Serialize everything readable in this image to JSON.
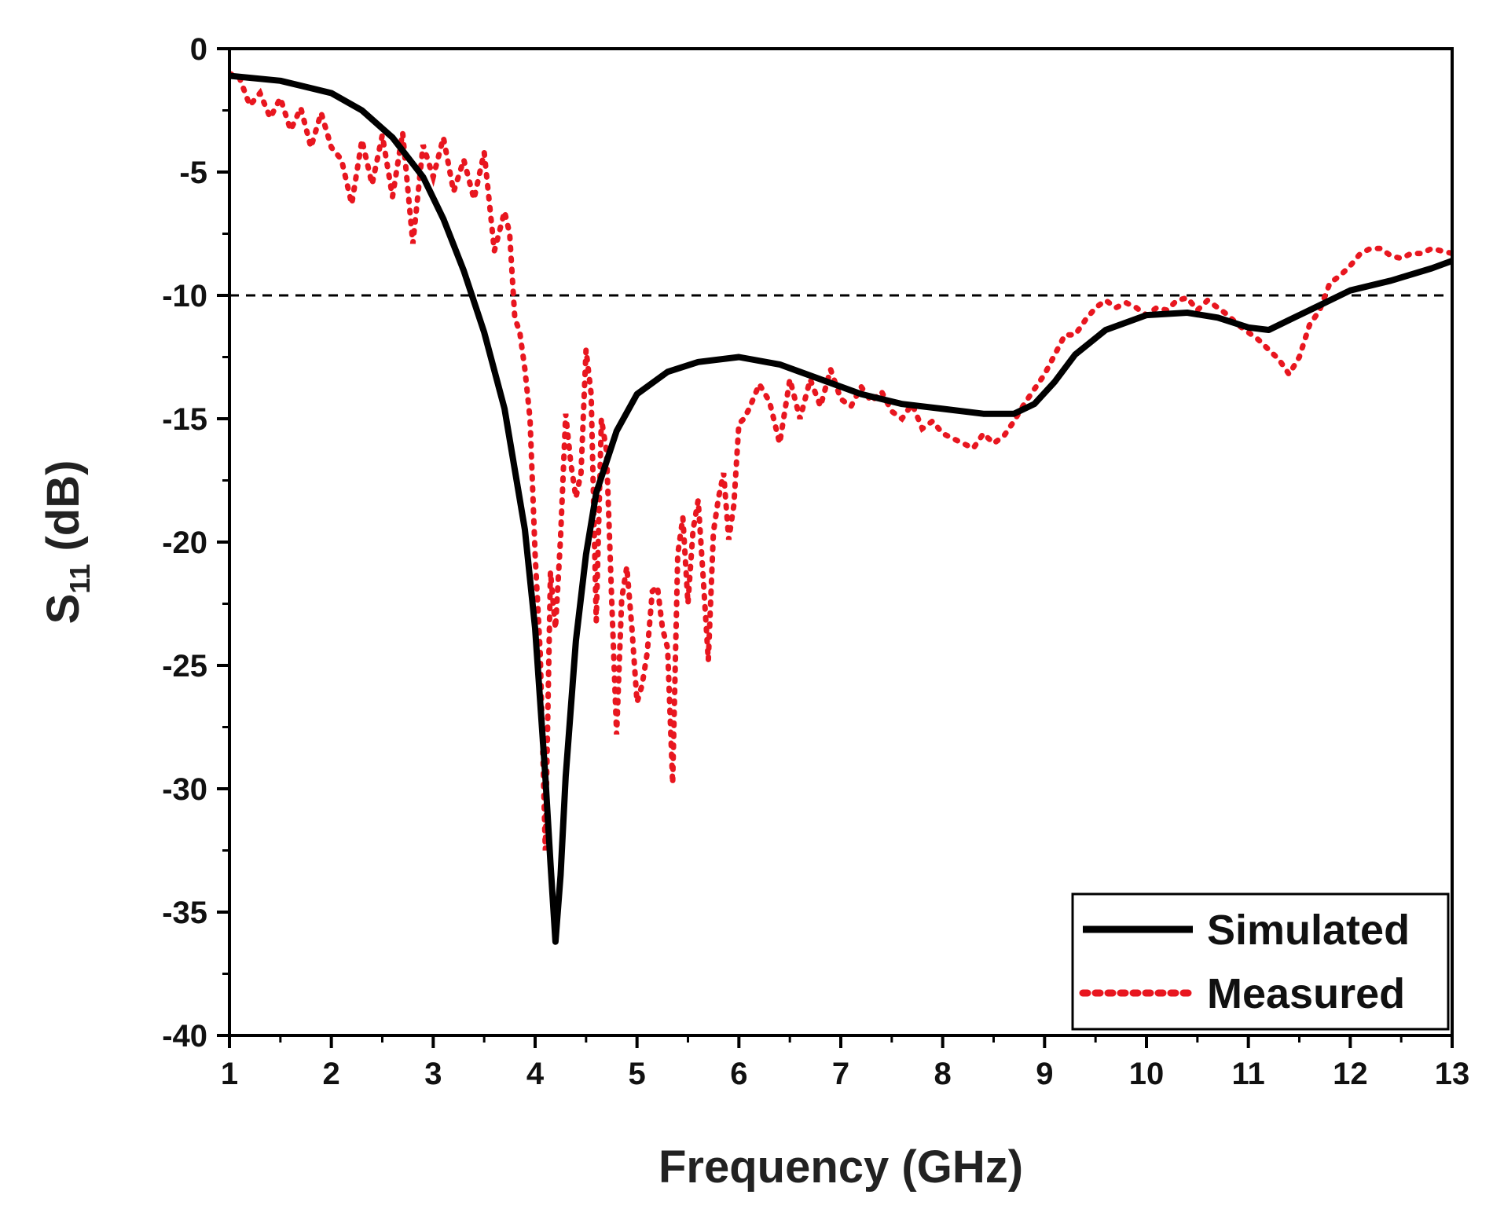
{
  "chart_data": {
    "type": "line",
    "title": "",
    "xlabel": "Frequency (GHz)",
    "ylabel_main": "S",
    "ylabel_sub": "11",
    "ylabel_unit": " (dB)",
    "xlim": [
      1,
      13
    ],
    "ylim": [
      -40,
      0
    ],
    "xticks": [
      1,
      2,
      3,
      4,
      5,
      6,
      7,
      8,
      9,
      10,
      11,
      12,
      13
    ],
    "yticks": [
      0,
      -5,
      -10,
      -15,
      -20,
      -25,
      -30,
      -35,
      -40
    ],
    "grid": false,
    "legend_position": "bottom-right",
    "reference_line": {
      "y": -10,
      "style": "dashed",
      "color": "#000000"
    },
    "series": [
      {
        "name": "Simulated",
        "style": "solid",
        "color": "#000000",
        "x": [
          1.0,
          1.5,
          2.0,
          2.3,
          2.6,
          2.9,
          3.1,
          3.3,
          3.5,
          3.7,
          3.9,
          4.0,
          4.1,
          4.15,
          4.2,
          4.25,
          4.3,
          4.4,
          4.5,
          4.6,
          4.8,
          5.0,
          5.3,
          5.6,
          6.0,
          6.4,
          6.8,
          7.2,
          7.6,
          8.0,
          8.4,
          8.7,
          8.9,
          9.1,
          9.3,
          9.6,
          10.0,
          10.4,
          10.7,
          11.0,
          11.2,
          11.4,
          11.7,
          12.0,
          12.4,
          12.8,
          13.0
        ],
        "values": [
          -1.1,
          -1.3,
          -1.8,
          -2.5,
          -3.6,
          -5.2,
          -6.9,
          -9.0,
          -11.5,
          -14.6,
          -19.5,
          -23.5,
          -29.5,
          -33.0,
          -36.2,
          -33.5,
          -29.5,
          -24.0,
          -20.5,
          -18.0,
          -15.5,
          -14.0,
          -13.1,
          -12.7,
          -12.5,
          -12.8,
          -13.4,
          -14.0,
          -14.4,
          -14.6,
          -14.8,
          -14.8,
          -14.4,
          -13.5,
          -12.4,
          -11.4,
          -10.8,
          -10.7,
          -10.9,
          -11.3,
          -11.4,
          -11.0,
          -10.4,
          -9.8,
          -9.4,
          -8.9,
          -8.6
        ]
      },
      {
        "name": "Measured",
        "style": "dotted",
        "color": "#e8161f",
        "x": [
          1.0,
          1.1,
          1.2,
          1.3,
          1.4,
          1.5,
          1.6,
          1.7,
          1.8,
          1.9,
          2.0,
          2.1,
          2.2,
          2.3,
          2.4,
          2.5,
          2.6,
          2.7,
          2.8,
          2.9,
          3.0,
          3.1,
          3.2,
          3.3,
          3.4,
          3.5,
          3.6,
          3.7,
          3.75,
          3.8,
          3.85,
          3.9,
          3.95,
          4.0,
          4.05,
          4.1,
          4.15,
          4.2,
          4.25,
          4.3,
          4.35,
          4.4,
          4.45,
          4.5,
          4.55,
          4.6,
          4.65,
          4.7,
          4.75,
          4.8,
          4.85,
          4.9,
          4.95,
          5.0,
          5.05,
          5.1,
          5.15,
          5.2,
          5.25,
          5.3,
          5.35,
          5.4,
          5.45,
          5.5,
          5.55,
          5.6,
          5.65,
          5.7,
          5.75,
          5.8,
          5.85,
          5.9,
          5.95,
          6.0,
          6.05,
          6.1,
          6.2,
          6.3,
          6.4,
          6.5,
          6.6,
          6.7,
          6.8,
          6.9,
          7.0,
          7.1,
          7.2,
          7.3,
          7.4,
          7.5,
          7.6,
          7.7,
          7.8,
          7.9,
          8.0,
          8.1,
          8.2,
          8.3,
          8.4,
          8.5,
          8.6,
          8.7,
          8.8,
          8.9,
          9.0,
          9.1,
          9.2,
          9.3,
          9.4,
          9.5,
          9.6,
          9.7,
          9.8,
          9.9,
          10.0,
          10.1,
          10.2,
          10.3,
          10.4,
          10.5,
          10.6,
          10.7,
          10.8,
          10.9,
          11.0,
          11.1,
          11.2,
          11.3,
          11.4,
          11.5,
          11.6,
          11.7,
          11.8,
          11.9,
          12.0,
          12.1,
          12.2,
          12.3,
          12.4,
          12.5,
          12.6,
          12.7,
          12.8,
          12.9,
          13.0
        ],
        "values": [
          -1.0,
          -1.2,
          -2.3,
          -1.8,
          -2.8,
          -2.0,
          -3.3,
          -2.4,
          -4.0,
          -2.6,
          -4.0,
          -4.5,
          -6.3,
          -3.7,
          -5.5,
          -3.5,
          -6.0,
          -3.4,
          -7.9,
          -3.9,
          -5.2,
          -3.6,
          -5.8,
          -4.5,
          -6.1,
          -4.2,
          -8.2,
          -6.6,
          -7.5,
          -10.9,
          -11.5,
          -13.0,
          -15.0,
          -20.5,
          -24.5,
          -32.5,
          -21.2,
          -23.5,
          -19.8,
          -14.8,
          -16.8,
          -18.2,
          -17.2,
          -12.2,
          -14.0,
          -23.2,
          -15.0,
          -16.3,
          -22.2,
          -27.8,
          -22.3,
          -21.0,
          -23.5,
          -26.5,
          -25.8,
          -24.5,
          -22.0,
          -21.8,
          -23.5,
          -24.3,
          -29.8,
          -20.5,
          -19.0,
          -22.5,
          -19.5,
          -18.3,
          -21.5,
          -24.8,
          -19.6,
          -18.2,
          -17.2,
          -19.9,
          -18.5,
          -15.2,
          -15.0,
          -14.6,
          -13.6,
          -14.3,
          -16.0,
          -13.4,
          -15.0,
          -13.4,
          -14.5,
          -13.0,
          -14.2,
          -14.5,
          -13.7,
          -14.3,
          -13.9,
          -14.7,
          -15.0,
          -14.4,
          -15.4,
          -15.1,
          -15.6,
          -15.8,
          -16.0,
          -16.2,
          -15.6,
          -16.0,
          -15.7,
          -15.1,
          -14.4,
          -13.8,
          -13.2,
          -12.4,
          -11.6,
          -11.6,
          -11.0,
          -10.5,
          -10.2,
          -10.5,
          -10.3,
          -10.5,
          -10.8,
          -10.5,
          -10.6,
          -10.2,
          -10.1,
          -10.6,
          -10.2,
          -10.5,
          -10.8,
          -11.2,
          -11.5,
          -11.8,
          -12.2,
          -12.6,
          -13.2,
          -12.5,
          -11.2,
          -10.6,
          -9.5,
          -9.2,
          -8.8,
          -8.3,
          -8.1,
          -8.1,
          -8.4,
          -8.5,
          -8.3,
          -8.3,
          -8.1,
          -8.2,
          -8.3
        ]
      }
    ]
  }
}
